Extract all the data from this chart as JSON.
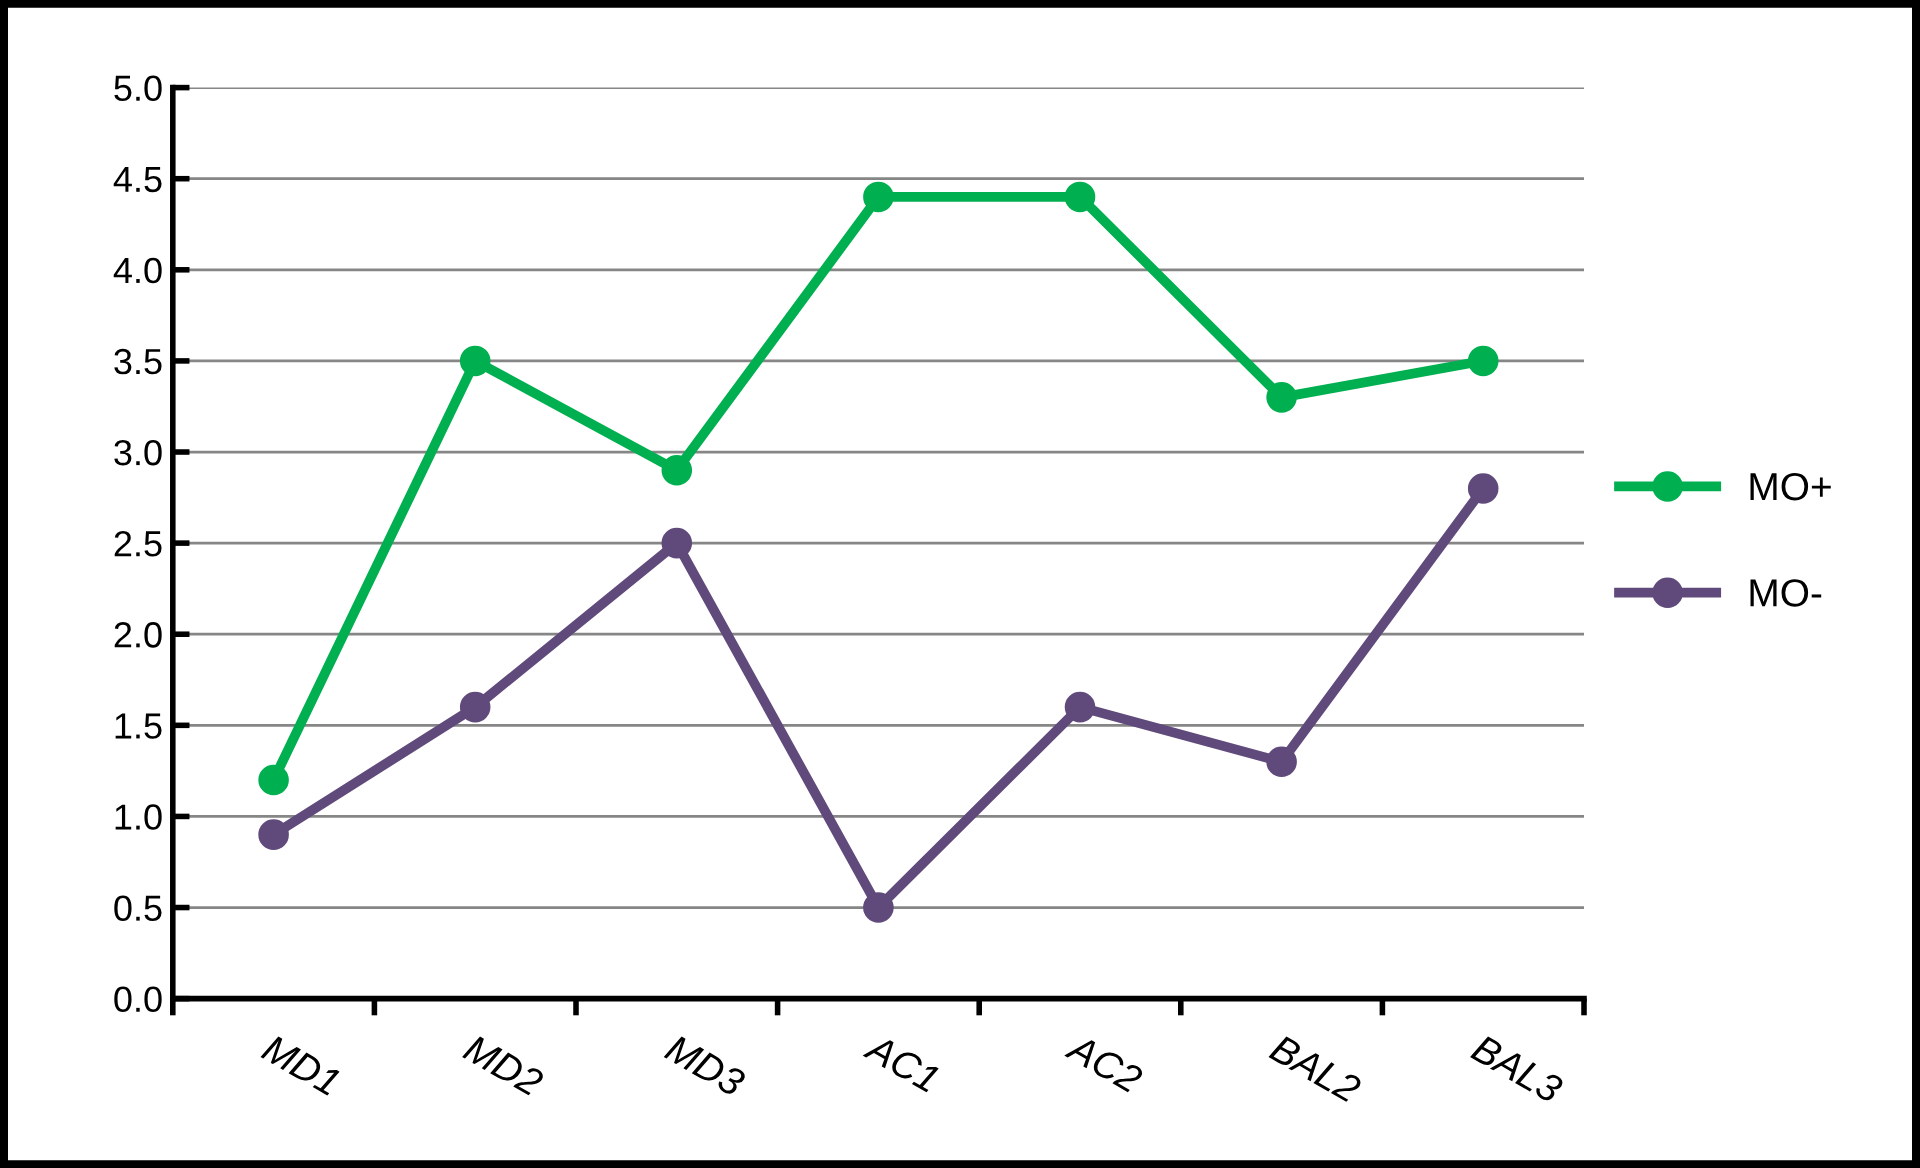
{
  "chart_data": {
    "type": "line",
    "categories": [
      "MD1",
      "MD2",
      "MD3",
      "AC1",
      "AC2",
      "BAL2",
      "BAL3"
    ],
    "series": [
      {
        "name": "MO+",
        "color": "#00b050",
        "values": [
          1.2,
          3.5,
          2.9,
          4.4,
          4.4,
          3.3,
          3.5
        ]
      },
      {
        "name": "MO-",
        "color": "#604a7b",
        "values": [
          0.9,
          1.6,
          2.5,
          0.5,
          1.6,
          1.3,
          2.8
        ]
      }
    ],
    "ylim": [
      0,
      5
    ],
    "yticks": [
      {
        "value": 0,
        "label": "0.0"
      },
      {
        "value": 0.5,
        "label": "0.5"
      },
      {
        "value": 1,
        "label": "1.0"
      },
      {
        "value": 1.5,
        "label": "1.5"
      },
      {
        "value": 2,
        "label": "2.0"
      },
      {
        "value": 2.5,
        "label": "2.5"
      },
      {
        "value": 3,
        "label": "3.0"
      },
      {
        "value": 3.5,
        "label": "3.5"
      },
      {
        "value": 4,
        "label": "4.0"
      },
      {
        "value": 4.5,
        "label": "4.5"
      },
      {
        "value": 5,
        "label": "5.0"
      }
    ],
    "grid": "y",
    "legend": "right",
    "marker": "circle",
    "line_style": "solid"
  }
}
